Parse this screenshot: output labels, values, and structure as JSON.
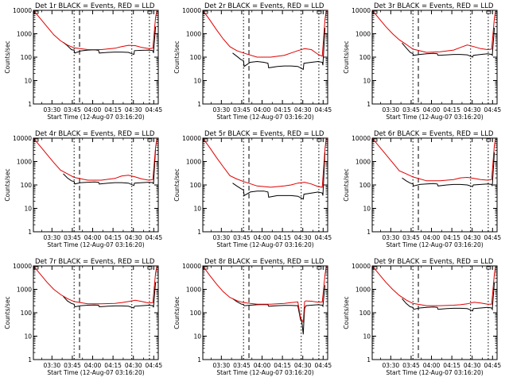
{
  "figure": {
    "x_axis_label": "Start Time (12-Aug-07 03:16:20)",
    "y_axis_label": "Counts/sec",
    "x_tick_labels": [
      "03:30",
      "03:45",
      "04:00",
      "04:15",
      "04:30",
      "04:45"
    ],
    "y_tick_labels": [
      "1",
      "10",
      "100",
      "1000",
      "10000"
    ],
    "colors": {
      "events": "#000000",
      "lld": "#e00000",
      "background": "#ffffff"
    }
  },
  "chart_data": [
    {
      "type": "line",
      "title": "Det 1r BLACK = Events, RED = LLD",
      "x_unit": "minutes after 03:16:20",
      "y_scale": "log",
      "ylim": [
        1,
        10000
      ],
      "xlim": [
        0,
        92
      ],
      "series": [
        {
          "name": "Events",
          "x": [
            20,
            22,
            25,
            28,
            30,
            30.5,
            35,
            40,
            45,
            48,
            48.5,
            55,
            60,
            65,
            70,
            74,
            74.5,
            80,
            85,
            88,
            88.5,
            90
          ],
          "y": [
            null,
            430,
            310,
            210,
            195,
            150,
            185,
            200,
            205,
            195,
            150,
            160,
            165,
            165,
            160,
            130,
            190,
            195,
            200,
            190,
            150,
            2000
          ]
        },
        {
          "name": "LLD",
          "x": [
            0,
            5,
            10,
            15,
            20,
            25,
            30,
            40,
            50,
            60,
            65,
            70,
            75,
            80,
            85,
            88,
            90,
            91
          ],
          "y": [
            10000,
            4500,
            2000,
            900,
            500,
            330,
            250,
            210,
            210,
            240,
            280,
            320,
            310,
            260,
            230,
            240,
            5000,
            10000
          ]
        }
      ]
    },
    {
      "type": "line",
      "title": "Det 2r BLACK = Events, RED = LLD",
      "x_unit": "minutes after 03:16:20",
      "y_scale": "log",
      "ylim": [
        1,
        10000
      ],
      "xlim": [
        0,
        92
      ],
      "series": [
        {
          "name": "Events",
          "x": [
            20,
            22,
            25,
            28,
            30,
            30.5,
            35,
            40,
            45,
            48,
            48.5,
            55,
            60,
            65,
            70,
            74,
            74.5,
            80,
            85,
            88,
            88.5,
            90
          ],
          "y": [
            null,
            150,
            110,
            80,
            70,
            40,
            60,
            65,
            60,
            55,
            35,
            40,
            42,
            42,
            40,
            30,
            55,
            60,
            65,
            60,
            45,
            1800
          ]
        },
        {
          "name": "LLD",
          "x": [
            0,
            5,
            10,
            15,
            20,
            25,
            30,
            40,
            50,
            60,
            65,
            70,
            75,
            80,
            85,
            88,
            90,
            91
          ],
          "y": [
            10000,
            4000,
            1500,
            600,
            280,
            190,
            150,
            100,
            100,
            120,
            150,
            190,
            230,
            210,
            130,
            110,
            4000,
            10000
          ]
        }
      ]
    },
    {
      "type": "line",
      "title": "Det 3r BLACK = Events, RED = LLD",
      "x_unit": "minutes after 03:16:20",
      "y_scale": "log",
      "ylim": [
        1,
        10000
      ],
      "xlim": [
        0,
        92
      ],
      "series": [
        {
          "name": "Events",
          "x": [
            20,
            22,
            25,
            28,
            30,
            30.5,
            35,
            40,
            45,
            48,
            48.5,
            55,
            60,
            65,
            70,
            74,
            74.5,
            80,
            85,
            88,
            88.5,
            90
          ],
          "y": [
            null,
            400,
            250,
            160,
            140,
            120,
            130,
            140,
            145,
            140,
            120,
            125,
            130,
            130,
            125,
            100,
            120,
            130,
            140,
            130,
            120,
            1800
          ]
        },
        {
          "name": "LLD",
          "x": [
            0,
            5,
            10,
            15,
            20,
            25,
            30,
            40,
            50,
            60,
            65,
            70,
            75,
            80,
            85,
            88,
            90,
            91
          ],
          "y": [
            10000,
            4500,
            2000,
            1000,
            550,
            350,
            220,
            160,
            170,
            200,
            260,
            330,
            280,
            230,
            210,
            220,
            4500,
            10000
          ]
        }
      ]
    },
    {
      "type": "line",
      "title": "Det 4r BLACK = Events, RED = LLD",
      "x_unit": "minutes after 03:16:20",
      "y_scale": "log",
      "ylim": [
        1,
        10000
      ],
      "xlim": [
        0,
        92
      ],
      "series": [
        {
          "name": "Events",
          "x": [
            20,
            22,
            25,
            28,
            30,
            30.5,
            35,
            40,
            45,
            48,
            48.5,
            55,
            60,
            65,
            70,
            74,
            74.5,
            80,
            85,
            88,
            88.5,
            90
          ],
          "y": [
            null,
            300,
            200,
            150,
            140,
            110,
            125,
            130,
            135,
            130,
            110,
            120,
            125,
            125,
            120,
            95,
            120,
            125,
            130,
            125,
            110,
            3500
          ]
        },
        {
          "name": "LLD",
          "x": [
            0,
            5,
            10,
            15,
            20,
            25,
            30,
            40,
            50,
            60,
            65,
            70,
            75,
            80,
            85,
            88,
            90,
            91
          ],
          "y": [
            10000,
            4500,
            2000,
            900,
            430,
            300,
            210,
            160,
            160,
            190,
            240,
            260,
            220,
            180,
            160,
            170,
            4000,
            10000
          ]
        }
      ]
    },
    {
      "type": "line",
      "title": "Det 5r BLACK = Events, RED = LLD",
      "x_unit": "minutes after 03:16:20",
      "y_scale": "log",
      "ylim": [
        1,
        10000
      ],
      "xlim": [
        0,
        92
      ],
      "series": [
        {
          "name": "Events",
          "x": [
            20,
            22,
            25,
            28,
            30,
            30.5,
            35,
            40,
            45,
            48,
            48.5,
            55,
            60,
            65,
            70,
            74,
            74.5,
            80,
            85,
            88,
            88.5,
            90
          ],
          "y": [
            null,
            120,
            90,
            70,
            60,
            35,
            50,
            55,
            55,
            50,
            30,
            35,
            35,
            35,
            33,
            25,
            40,
            45,
            50,
            45,
            35,
            2500
          ]
        },
        {
          "name": "LLD",
          "x": [
            0,
            5,
            10,
            15,
            20,
            25,
            30,
            40,
            50,
            60,
            65,
            70,
            75,
            80,
            85,
            88,
            90,
            91
          ],
          "y": [
            10000,
            4000,
            1500,
            600,
            250,
            180,
            140,
            90,
            80,
            90,
            100,
            120,
            130,
            110,
            85,
            80,
            3500,
            10000
          ]
        }
      ]
    },
    {
      "type": "line",
      "title": "Det 6r BLACK = Events, RED = LLD",
      "x_unit": "minutes after 03:16:20",
      "y_scale": "log",
      "ylim": [
        1,
        10000
      ],
      "xlim": [
        0,
        92
      ],
      "series": [
        {
          "name": "Events",
          "x": [
            20,
            22,
            25,
            28,
            30,
            30.5,
            35,
            40,
            45,
            48,
            48.5,
            55,
            60,
            65,
            70,
            74,
            74.5,
            80,
            85,
            88,
            88.5,
            90
          ],
          "y": [
            null,
            200,
            150,
            120,
            110,
            90,
            105,
            110,
            115,
            110,
            90,
            100,
            105,
            105,
            100,
            85,
            100,
            105,
            110,
            105,
            90,
            2500
          ]
        },
        {
          "name": "LLD",
          "x": [
            0,
            5,
            10,
            15,
            20,
            25,
            30,
            40,
            50,
            60,
            65,
            70,
            75,
            80,
            85,
            88,
            90,
            91
          ],
          "y": [
            10000,
            4500,
            2000,
            900,
            400,
            300,
            220,
            150,
            150,
            170,
            200,
            210,
            190,
            170,
            160,
            170,
            5000,
            10000
          ]
        }
      ]
    },
    {
      "type": "line",
      "title": "Det 7r BLACK = Events, RED = LLD",
      "x_unit": "minutes after 03:16:20",
      "y_scale": "log",
      "ylim": [
        1,
        10000
      ],
      "xlim": [
        0,
        92
      ],
      "series": [
        {
          "name": "Events",
          "x": [
            20,
            22,
            25,
            28,
            30,
            30.5,
            35,
            40,
            45,
            48,
            48.5,
            55,
            60,
            65,
            70,
            74,
            74.5,
            80,
            85,
            88,
            88.5,
            90
          ],
          "y": [
            null,
            500,
            320,
            250,
            230,
            180,
            200,
            210,
            215,
            210,
            180,
            190,
            195,
            195,
            190,
            160,
            190,
            200,
            210,
            200,
            170,
            2000
          ]
        },
        {
          "name": "LLD",
          "x": [
            0,
            5,
            10,
            15,
            20,
            25,
            30,
            40,
            50,
            60,
            65,
            70,
            75,
            80,
            85,
            88,
            90,
            91
          ],
          "y": [
            10000,
            4500,
            2000,
            1000,
            600,
            400,
            300,
            240,
            240,
            250,
            270,
            300,
            340,
            300,
            260,
            270,
            5000,
            10000
          ]
        }
      ]
    },
    {
      "type": "line",
      "title": "Det 8r BLACK = Events, RED = LLD",
      "x_unit": "minutes after 03:16:20",
      "y_scale": "log",
      "ylim": [
        1,
        10000
      ],
      "xlim": [
        0,
        92
      ],
      "series": [
        {
          "name": "Events",
          "x": [
            20,
            22,
            25,
            28,
            30,
            30.5,
            35,
            40,
            45,
            48,
            48.5,
            55,
            60,
            65,
            70,
            72,
            73,
            74,
            74.5,
            75,
            76,
            80,
            85,
            88,
            88.5,
            90
          ],
          "y": [
            null,
            400,
            300,
            240,
            220,
            200,
            210,
            220,
            225,
            220,
            190,
            200,
            205,
            205,
            200,
            50,
            40,
            12,
            45,
            150,
            200,
            210,
            220,
            210,
            190,
            1500
          ]
        },
        {
          "name": "LLD",
          "x": [
            0,
            5,
            10,
            15,
            20,
            25,
            30,
            40,
            50,
            60,
            65,
            70,
            72,
            73,
            74,
            75,
            76,
            80,
            85,
            88,
            90,
            91
          ],
          "y": [
            10000,
            4000,
            1700,
            800,
            450,
            330,
            270,
            230,
            230,
            250,
            270,
            290,
            60,
            50,
            40,
            300,
            320,
            310,
            280,
            290,
            4000,
            10000
          ]
        }
      ]
    },
    {
      "type": "line",
      "title": "Det 9r BLACK = Events, RED = LLD",
      "x_unit": "minutes after 03:16:20",
      "y_scale": "log",
      "ylim": [
        1,
        10000
      ],
      "xlim": [
        0,
        92
      ],
      "series": [
        {
          "name": "Events",
          "x": [
            20,
            22,
            25,
            28,
            30,
            30.5,
            35,
            40,
            45,
            48,
            48.5,
            55,
            60,
            65,
            70,
            74,
            74.5,
            80,
            85,
            88,
            88.5,
            90
          ],
          "y": [
            null,
            400,
            250,
            180,
            170,
            140,
            160,
            170,
            175,
            170,
            140,
            150,
            155,
            155,
            150,
            120,
            150,
            160,
            170,
            160,
            140,
            2000
          ]
        },
        {
          "name": "LLD",
          "x": [
            0,
            5,
            10,
            15,
            20,
            25,
            30,
            40,
            50,
            60,
            65,
            70,
            75,
            80,
            85,
            88,
            90,
            91
          ],
          "y": [
            10000,
            4500,
            2000,
            1000,
            550,
            350,
            250,
            200,
            200,
            210,
            220,
            240,
            280,
            260,
            230,
            230,
            4500,
            10000
          ]
        }
      ]
    }
  ]
}
